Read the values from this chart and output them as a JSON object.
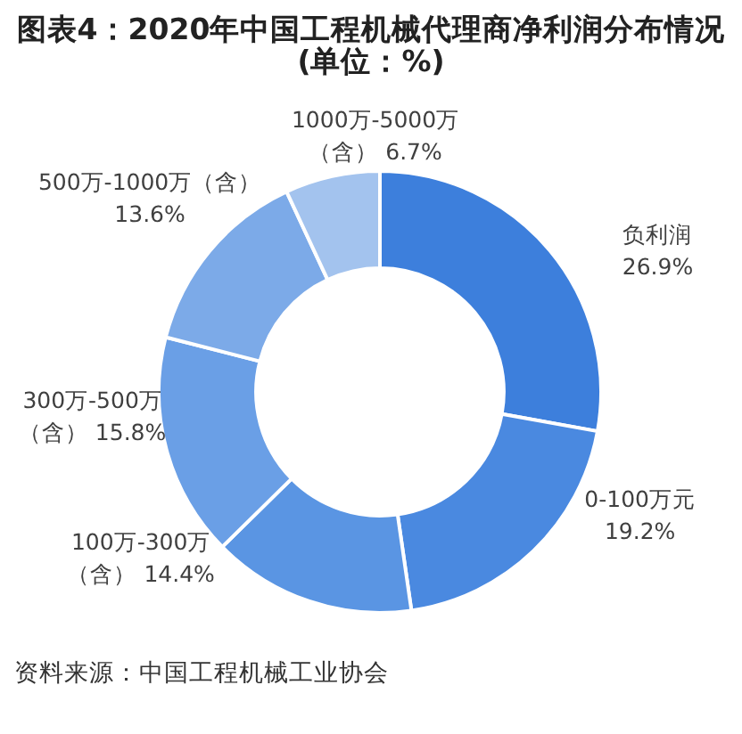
{
  "chart_data": {
    "type": "donut",
    "title": "图表4：2020年中国工程机械代理商净利润分布情况(单位：%)",
    "categories": [
      "负利润",
      "0-100万元",
      "100万-300万（含）",
      "300万-500万（含）",
      "500万-1000万（含）",
      "1000万-5000万（含）"
    ],
    "values": [
      26.9,
      19.2,
      14.4,
      15.8,
      13.6,
      6.7
    ],
    "value_labels": [
      "26.9%",
      "19.2%",
      "14.4%",
      "15.8%",
      "13.6%",
      "6.7%"
    ],
    "colors": [
      "#3d7fdc",
      "#4a89e0",
      "#5a95e3",
      "#6a9fe6",
      "#7caae8",
      "#a3c3ee"
    ],
    "legend": false,
    "annotations": [
      "资料来源：中国工程机械工业协会"
    ]
  }
}
